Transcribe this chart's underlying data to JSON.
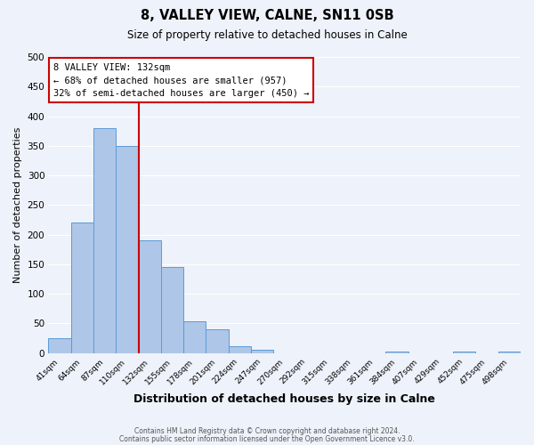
{
  "title": "8, VALLEY VIEW, CALNE, SN11 0SB",
  "subtitle": "Size of property relative to detached houses in Calne",
  "xlabel": "Distribution of detached houses by size in Calne",
  "ylabel": "Number of detached properties",
  "bar_labels": [
    "41sqm",
    "64sqm",
    "87sqm",
    "110sqm",
    "132sqm",
    "155sqm",
    "178sqm",
    "201sqm",
    "224sqm",
    "247sqm",
    "270sqm",
    "292sqm",
    "315sqm",
    "338sqm",
    "361sqm",
    "384sqm",
    "407sqm",
    "429sqm",
    "452sqm",
    "475sqm",
    "498sqm"
  ],
  "bar_values": [
    25,
    220,
    380,
    350,
    190,
    145,
    53,
    40,
    12,
    6,
    0,
    0,
    0,
    0,
    0,
    2,
    0,
    0,
    2,
    0,
    2
  ],
  "bar_color": "#aec6e8",
  "bar_edge_color": "#5b9bd5",
  "vline_color": "#cc0000",
  "annotation_title": "8 VALLEY VIEW: 132sqm",
  "annotation_line1": "← 68% of detached houses are smaller (957)",
  "annotation_line2": "32% of semi-detached houses are larger (450) →",
  "annotation_box_color": "#cc0000",
  "ylim": [
    0,
    500
  ],
  "yticks": [
    0,
    50,
    100,
    150,
    200,
    250,
    300,
    350,
    400,
    450,
    500
  ],
  "footer1": "Contains HM Land Registry data © Crown copyright and database right 2024.",
  "footer2": "Contains public sector information licensed under the Open Government Licence v3.0.",
  "background_color": "#eef2fa",
  "grid_color": "#ffffff"
}
